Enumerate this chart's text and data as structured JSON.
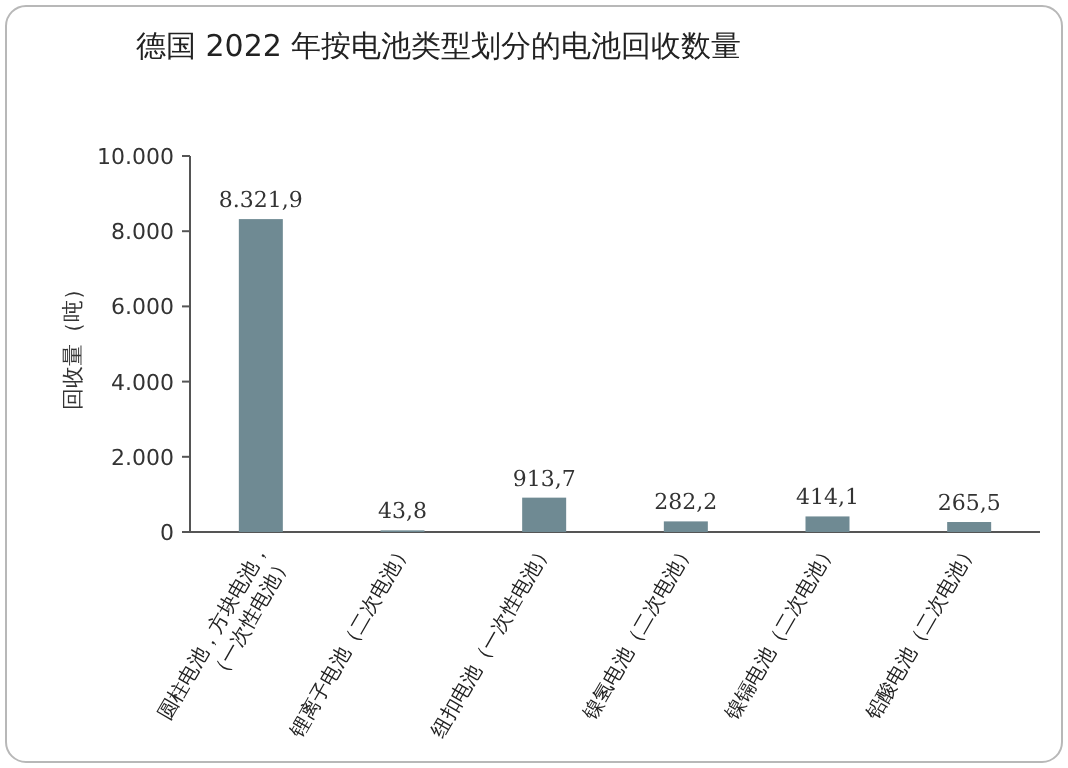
{
  "chart_data": {
    "type": "bar",
    "title": "德国 2022 年按电池类型划分的电池回收数量",
    "ylabel": "回收量（吨）",
    "categories": [
      "圆柱电池，方块电池，（一次性电池）",
      "锂离子电池（二次电池）",
      "纽扣电池（一次性电池）",
      "镍氢电池（二次电池）",
      "镍镉电池（二次电池）",
      "铅酸电池（二次电池）"
    ],
    "values": [
      8321.9,
      43.8,
      913.7,
      282.2,
      414.1,
      265.5
    ],
    "value_labels": [
      "8.321,9",
      "43,8",
      "913,7",
      "282,2",
      "414,1",
      "265,5"
    ],
    "color": "#6f8a93",
    "ylim": [
      0,
      10000
    ],
    "yticks": [
      {
        "value": 0,
        "label": "0"
      },
      {
        "value": 2000,
        "label": "2.000"
      },
      {
        "value": 4000,
        "label": "4.000"
      },
      {
        "value": 6000,
        "label": "6.000"
      },
      {
        "value": 8000,
        "label": "8.000"
      },
      {
        "value": 10000,
        "label": "10.000"
      }
    ],
    "grid": false
  }
}
